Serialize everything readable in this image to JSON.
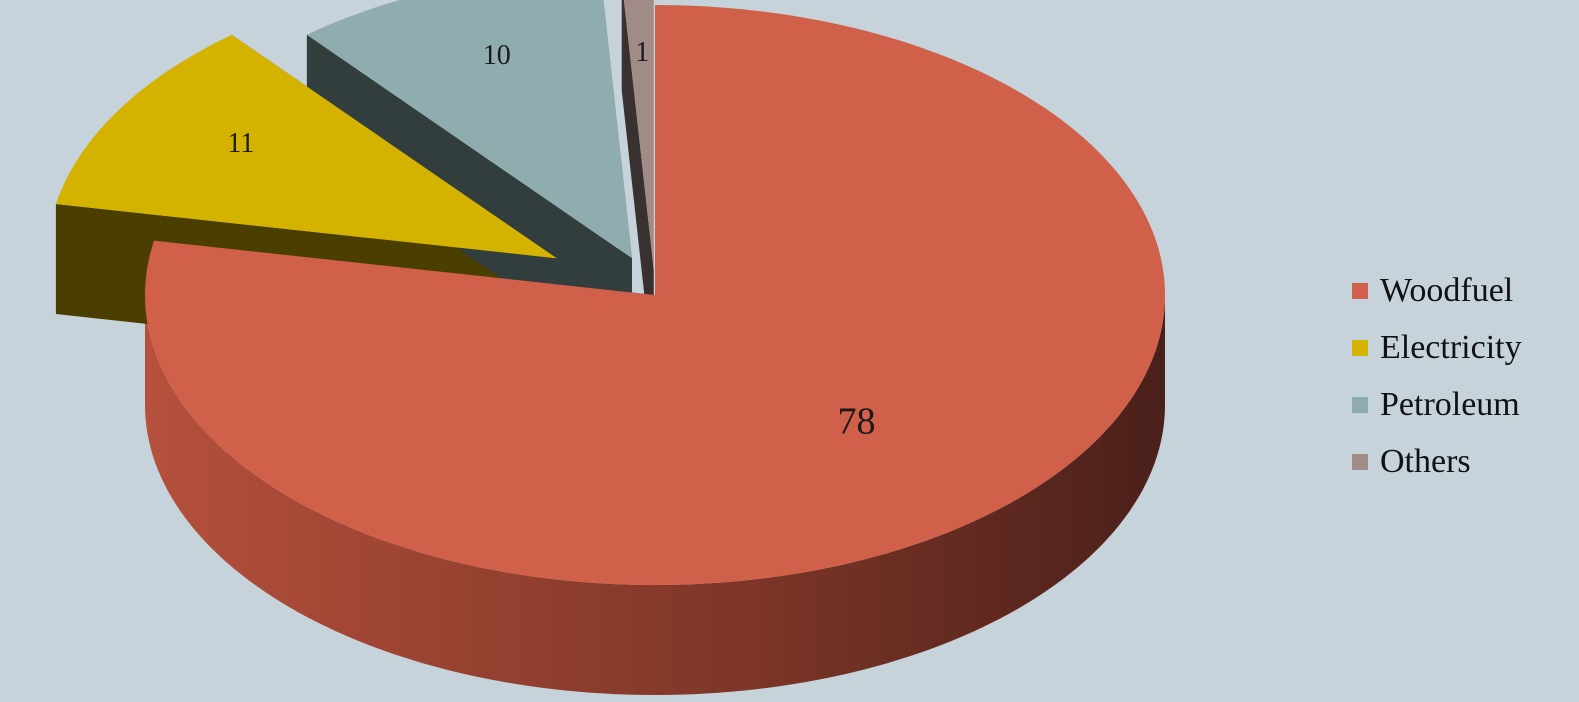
{
  "chart_data": {
    "type": "pie",
    "style": "3d-exploded",
    "categories": [
      "Woodfuel",
      "Electricity",
      "Petroleum",
      "Others"
    ],
    "values": [
      78,
      11,
      10,
      1
    ],
    "data_labels": [
      "78",
      "11",
      "10",
      "1"
    ],
    "colors": [
      "#d0604a",
      "#d4b300",
      "#8fadaf",
      "#a08b86"
    ],
    "title": "",
    "legend": {
      "position": "right",
      "entries": [
        "Woodfuel",
        "Electricity",
        "Petroleum",
        "Others"
      ]
    },
    "background": "#c6d3db"
  }
}
